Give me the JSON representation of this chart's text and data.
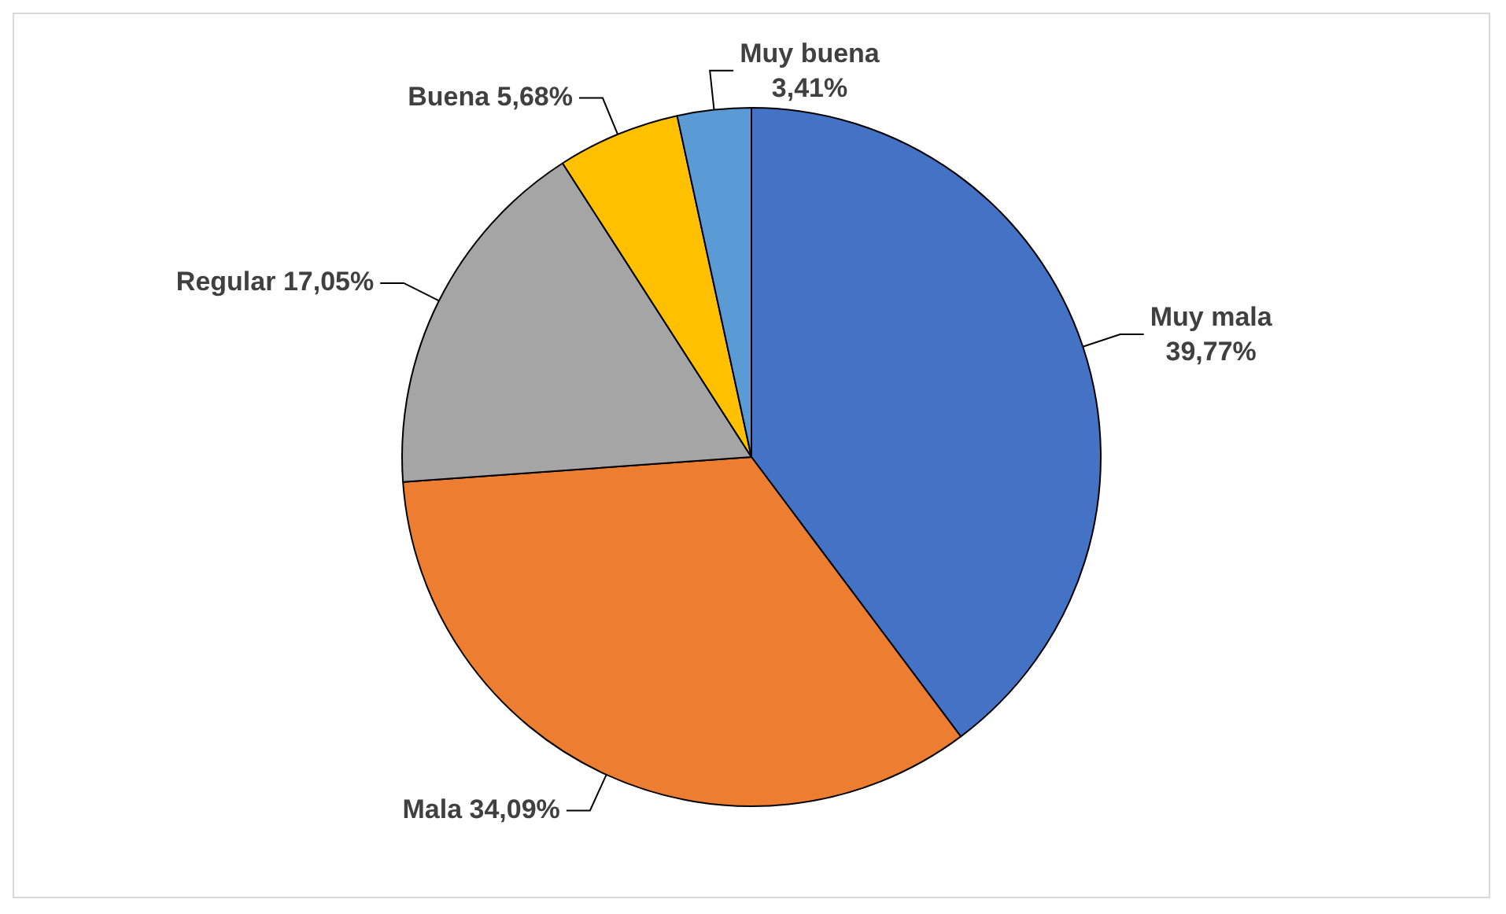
{
  "chart_data": {
    "type": "pie",
    "categories": [
      "Muy mala",
      "Mala",
      "Regular",
      "Buena",
      "Muy buena"
    ],
    "values": [
      39.77,
      34.09,
      17.05,
      5.68,
      3.41
    ],
    "value_labels": [
      "39,77%",
      "34,09%",
      "17,05%",
      "5,68%",
      "3,41%"
    ],
    "colors": [
      "#4472c4",
      "#ed7d31",
      "#a5a5a5",
      "#ffc000",
      "#5b9bd5"
    ],
    "legend": false
  }
}
